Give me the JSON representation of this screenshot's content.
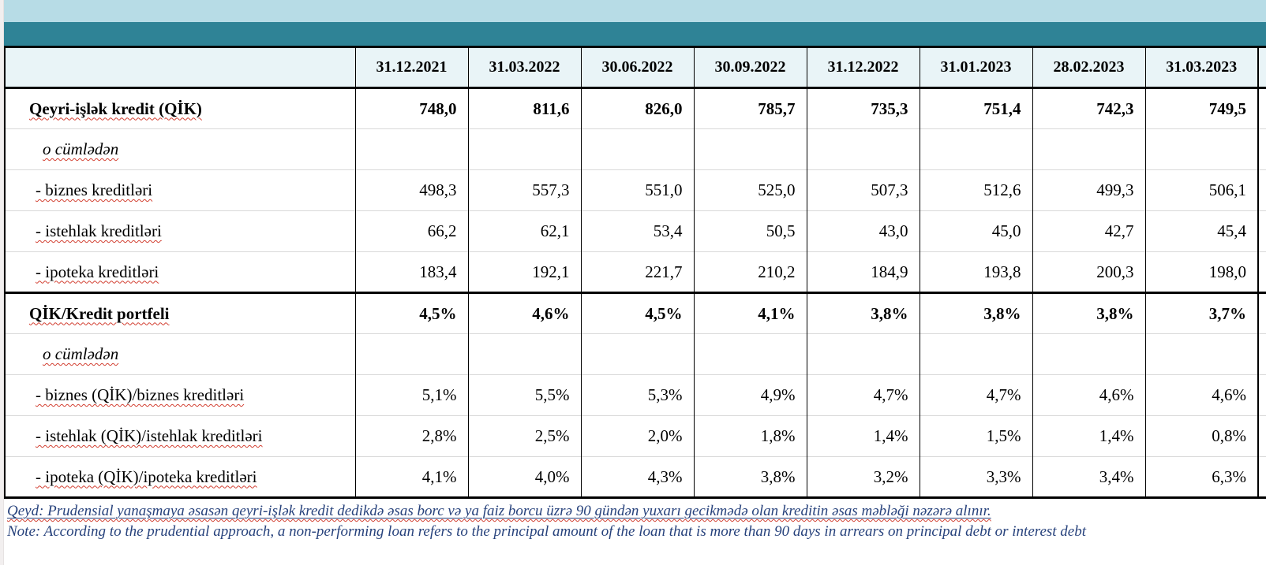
{
  "title_band": {
    "text": ""
  },
  "columns": [
    "31.12.2021",
    "31.03.2022",
    "30.06.2022",
    "30.09.2022",
    "31.12.2022",
    "31.01.2023",
    "28.02.2023",
    "31.03.2023"
  ],
  "rows": [
    {
      "label": "Qeyri-işlək kredit (QİK)",
      "style": "bold",
      "values": [
        "748,0",
        "811,6",
        "826,0",
        "785,7",
        "735,3",
        "751,4",
        "742,3",
        "749,5"
      ]
    },
    {
      "label": "o cümlədən",
      "style": "italic",
      "values": [
        "",
        "",
        "",
        "",
        "",
        "",
        "",
        ""
      ]
    },
    {
      "label": "- biznes kreditləri",
      "style": "normal",
      "values": [
        "498,3",
        "557,3",
        "551,0",
        "525,0",
        "507,3",
        "512,6",
        "499,3",
        "506,1"
      ]
    },
    {
      "label": "- istehlak kreditləri",
      "style": "normal",
      "values": [
        "66,2",
        "62,1",
        "53,4",
        "50,5",
        "43,0",
        "45,0",
        "42,7",
        "45,4"
      ]
    },
    {
      "label": "- ipoteka kreditləri",
      "style": "normal",
      "values": [
        "183,4",
        "192,1",
        "221,7",
        "210,2",
        "184,9",
        "193,8",
        "200,3",
        "198,0"
      ]
    },
    {
      "label": "QİK/Kredit portfeli",
      "style": "bold",
      "thick_top": true,
      "values": [
        "4,5%",
        "4,6%",
        "4,5%",
        "4,1%",
        "3,8%",
        "3,8%",
        "3,8%",
        "3,7%"
      ]
    },
    {
      "label": "o cümlədən",
      "style": "italic",
      "values": [
        "",
        "",
        "",
        "",
        "",
        "",
        "",
        ""
      ]
    },
    {
      "label": "- biznes (QİK)/biznes kreditləri",
      "style": "normal",
      "values": [
        "5,1%",
        "5,5%",
        "5,3%",
        "4,9%",
        "4,7%",
        "4,7%",
        "4,6%",
        "4,6%"
      ]
    },
    {
      "label": "- istehlak (QİK)/istehlak kreditləri",
      "style": "normal",
      "values": [
        "2,8%",
        "2,5%",
        "2,0%",
        "1,8%",
        "1,4%",
        "1,5%",
        "1,4%",
        "0,8%"
      ]
    },
    {
      "label": "- ipoteka (QİK)/ipoteka kreditləri",
      "style": "normal",
      "values": [
        "4,1%",
        "4,0%",
        "4,3%",
        "3,8%",
        "3,2%",
        "3,3%",
        "3,4%",
        "6,3%"
      ]
    }
  ],
  "notes": {
    "az": "Qeyd: Prudensial yanaşmaya əsasən qeyri-işlək kredit dedikdə əsas borc və ya faiz borcu üzrə 90 gündən yuxarı gecikmədə olan kreditin əsas məbləği nəzərə alınır.",
    "en": "Note: According to the prudential approach, a non-performing loan refers to the principal amount of the loan that is more than 90 days in arrears on principal debt or interest debt"
  },
  "colors": {
    "band_teal": "#2F8396",
    "band_light_blue": "#B7DCE6",
    "header_row_bg": "#E9F4F7",
    "note_text_blue": "#27427C",
    "spellcheck_red": "#D23F31"
  }
}
